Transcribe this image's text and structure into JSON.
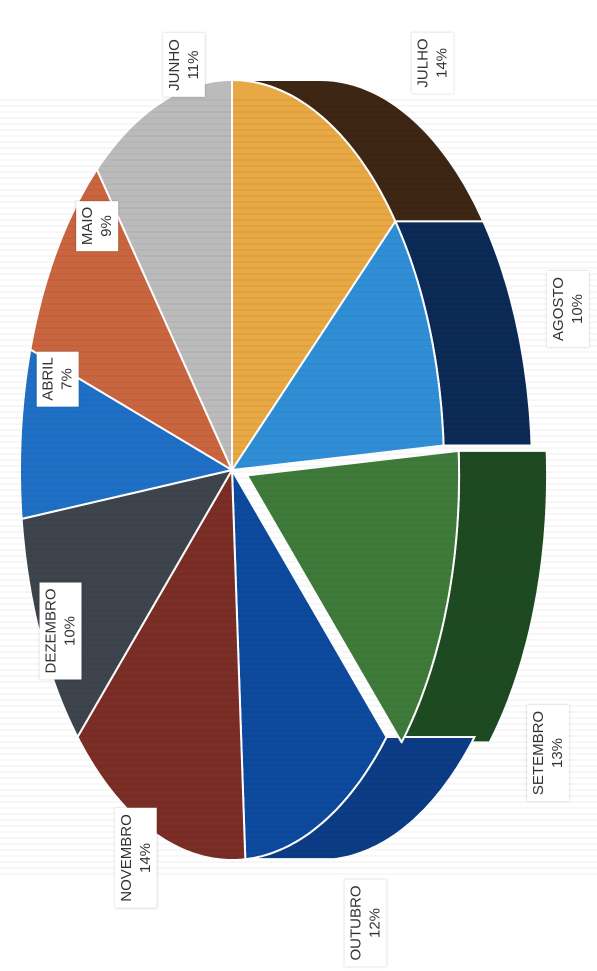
{
  "chart_data": {
    "type": "pie",
    "title": "",
    "slices": [
      {
        "label": "JULHO",
        "pct_label": "14%",
        "value": 14,
        "color": "#E8A843"
      },
      {
        "label": "AGOSTO",
        "pct_label": "10%",
        "value": 10,
        "color": "#2F8ED6"
      },
      {
        "label": "SETEMBRO",
        "pct_label": "13%",
        "value": 13,
        "color": "#3E7B3A"
      },
      {
        "label": "OUTUBRO",
        "pct_label": "12%",
        "value": 12,
        "color": "#0D4A9E"
      },
      {
        "label": "NOVEMBRO",
        "pct_label": "14%",
        "value": 14,
        "color": "#7A2E25"
      },
      {
        "label": "DEZEMBRO",
        "pct_label": "10%",
        "value": 10,
        "color": "#3E444C"
      },
      {
        "label": "ABRIL",
        "pct_label": "7%",
        "value": 7,
        "color": "#1E6FC5"
      },
      {
        "label": "MAIO",
        "pct_label": "9%",
        "value": 9,
        "color": "#C9653F"
      },
      {
        "label": "JUNHO",
        "pct_label": "11%",
        "value": 11,
        "color": "#BBBBBB"
      }
    ],
    "depth_colors": {
      "JULHO": "#3D2614",
      "AGOSTO": "#0B2A55",
      "SETEMBRO": "#1E4A22",
      "OUTUBRO": "#0B3C85"
    },
    "exploded": [
      "SETEMBRO"
    ],
    "legend": "none"
  }
}
